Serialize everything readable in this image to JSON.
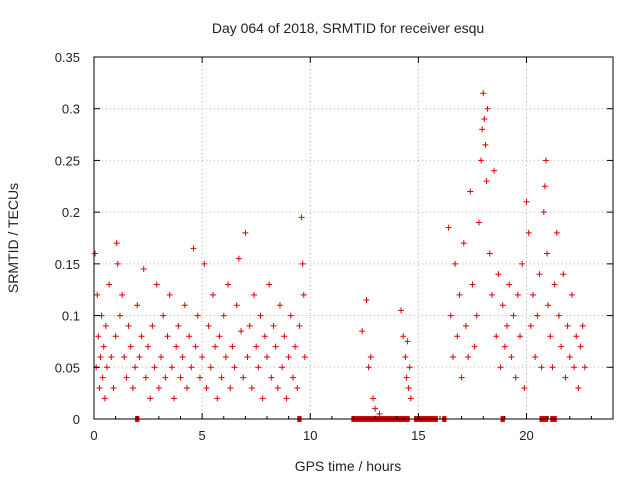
{
  "chart_data": {
    "type": "scatter",
    "title": "Day 064 of 2018, SRMTID for receiver esqu",
    "xlabel": "GPS time / hours",
    "ylabel": "SRMTID / TECUs",
    "xlim": [
      0,
      24
    ],
    "ylim": [
      0,
      0.35
    ],
    "xticks": [
      0,
      5,
      10,
      15,
      20
    ],
    "yticks": [
      0,
      0.05,
      0.1,
      0.15,
      0.2,
      0.25,
      0.3,
      0.35
    ],
    "xtick_labels": [
      "0",
      "5",
      "10",
      "15",
      "20"
    ],
    "ytick_labels": [
      "0",
      "0.05",
      "0.1",
      "0.15",
      "0.2",
      "0.25",
      "0.3",
      "0.35"
    ],
    "grid": true,
    "marker": "plus",
    "color": "#e00000",
    "series": [
      {
        "name": "SRMTID",
        "points": [
          [
            0.05,
            0.16
          ],
          [
            0.1,
            0.05
          ],
          [
            0.15,
            0.12
          ],
          [
            0.2,
            0.08
          ],
          [
            0.25,
            0.03
          ],
          [
            0.3,
            0.06
          ],
          [
            0.35,
            0.1
          ],
          [
            0.4,
            0.04
          ],
          [
            0.45,
            0.07
          ],
          [
            0.5,
            0.02
          ],
          [
            0.55,
            0.09
          ],
          [
            0.6,
            0.05
          ],
          [
            0.7,
            0.13
          ],
          [
            0.8,
            0.06
          ],
          [
            0.9,
            0.03
          ],
          [
            1.0,
            0.08
          ],
          [
            1.05,
            0.17
          ],
          [
            1.1,
            0.15
          ],
          [
            1.2,
            0.1
          ],
          [
            1.3,
            0.12
          ],
          [
            1.4,
            0.06
          ],
          [
            1.5,
            0.04
          ],
          [
            1.6,
            0.09
          ],
          [
            1.7,
            0.07
          ],
          [
            1.8,
            0.03
          ],
          [
            1.9,
            0.05
          ],
          [
            2.0,
            0.11
          ],
          [
            2.1,
            0.06
          ],
          [
            2.2,
            0.08
          ],
          [
            2.3,
            0.145
          ],
          [
            2.4,
            0.04
          ],
          [
            2.5,
            0.07
          ],
          [
            2.6,
            0.02
          ],
          [
            2.7,
            0.09
          ],
          [
            2.8,
            0.05
          ],
          [
            2.9,
            0.13
          ],
          [
            3.0,
            0.03
          ],
          [
            3.1,
            0.06
          ],
          [
            3.2,
            0.1
          ],
          [
            3.3,
            0.04
          ],
          [
            3.4,
            0.08
          ],
          [
            3.5,
            0.12
          ],
          [
            3.6,
            0.05
          ],
          [
            3.7,
            0.02
          ],
          [
            3.8,
            0.07
          ],
          [
            3.9,
            0.09
          ],
          [
            4.0,
            0.04
          ],
          [
            4.1,
            0.06
          ],
          [
            4.2,
            0.11
          ],
          [
            4.3,
            0.03
          ],
          [
            4.4,
            0.08
          ],
          [
            4.5,
            0.05
          ],
          [
            4.6,
            0.165
          ],
          [
            4.7,
            0.07
          ],
          [
            4.8,
            0.1
          ],
          [
            4.9,
            0.04
          ],
          [
            5.0,
            0.06
          ],
          [
            5.1,
            0.15
          ],
          [
            5.2,
            0.03
          ],
          [
            5.3,
            0.09
          ],
          [
            5.4,
            0.05
          ],
          [
            5.5,
            0.12
          ],
          [
            5.6,
            0.07
          ],
          [
            5.7,
            0.02
          ],
          [
            5.8,
            0.08
          ],
          [
            5.9,
            0.04
          ],
          [
            6.0,
            0.1
          ],
          [
            6.1,
            0.06
          ],
          [
            6.2,
            0.13
          ],
          [
            6.3,
            0.03
          ],
          [
            6.4,
            0.07
          ],
          [
            6.5,
            0.05
          ],
          [
            6.6,
            0.11
          ],
          [
            6.7,
            0.155
          ],
          [
            6.8,
            0.085
          ],
          [
            6.9,
            0.04
          ],
          [
            7.0,
            0.18
          ],
          [
            7.1,
            0.06
          ],
          [
            7.2,
            0.09
          ],
          [
            7.3,
            0.03
          ],
          [
            7.4,
            0.12
          ],
          [
            7.5,
            0.07
          ],
          [
            7.6,
            0.05
          ],
          [
            7.7,
            0.1
          ],
          [
            7.8,
            0.02
          ],
          [
            7.9,
            0.08
          ],
          [
            8.0,
            0.06
          ],
          [
            8.1,
            0.13
          ],
          [
            8.2,
            0.04
          ],
          [
            8.3,
            0.09
          ],
          [
            8.4,
            0.07
          ],
          [
            8.5,
            0.03
          ],
          [
            8.6,
            0.11
          ],
          [
            8.7,
            0.05
          ],
          [
            8.8,
            0.08
          ],
          [
            8.9,
            0.02
          ],
          [
            9.0,
            0.06
          ],
          [
            9.1,
            0.1
          ],
          [
            9.2,
            0.04
          ],
          [
            9.3,
            0.07
          ],
          [
            9.4,
            0.03
          ],
          [
            9.5,
            0.09
          ],
          [
            9.6,
            0.195
          ],
          [
            9.65,
            0.15
          ],
          [
            9.7,
            0.12
          ],
          [
            9.75,
            0.06
          ],
          [
            12.4,
            0.085
          ],
          [
            12.6,
            0.115
          ],
          [
            12.7,
            0.05
          ],
          [
            12.8,
            0.06
          ],
          [
            12.9,
            0.02
          ],
          [
            13.0,
            0.01
          ],
          [
            13.2,
            0.005
          ],
          [
            14.2,
            0.105
          ],
          [
            14.3,
            0.08
          ],
          [
            14.4,
            0.06
          ],
          [
            14.45,
            0.04
          ],
          [
            14.5,
            0.075
          ],
          [
            14.55,
            0.03
          ],
          [
            14.6,
            0.05
          ],
          [
            14.65,
            0.02
          ],
          [
            16.4,
            0.185
          ],
          [
            16.5,
            0.1
          ],
          [
            16.6,
            0.06
          ],
          [
            16.7,
            0.15
          ],
          [
            16.8,
            0.08
          ],
          [
            16.9,
            0.12
          ],
          [
            17.0,
            0.04
          ],
          [
            17.1,
            0.17
          ],
          [
            17.2,
            0.09
          ],
          [
            17.3,
            0.06
          ],
          [
            17.4,
            0.22
          ],
          [
            17.5,
            0.13
          ],
          [
            17.6,
            0.07
          ],
          [
            17.7,
            0.1
          ],
          [
            17.8,
            0.19
          ],
          [
            17.9,
            0.25
          ],
          [
            17.95,
            0.28
          ],
          [
            18.0,
            0.315
          ],
          [
            18.05,
            0.29
          ],
          [
            18.1,
            0.265
          ],
          [
            18.15,
            0.23
          ],
          [
            18.2,
            0.3
          ],
          [
            18.3,
            0.16
          ],
          [
            18.4,
            0.12
          ],
          [
            18.5,
            0.24
          ],
          [
            18.6,
            0.08
          ],
          [
            18.7,
            0.14
          ],
          [
            18.8,
            0.05
          ],
          [
            18.9,
            0.11
          ],
          [
            19.0,
            0.07
          ],
          [
            19.1,
            0.09
          ],
          [
            19.2,
            0.13
          ],
          [
            19.3,
            0.06
          ],
          [
            19.4,
            0.1
          ],
          [
            19.5,
            0.04
          ],
          [
            19.6,
            0.12
          ],
          [
            19.7,
            0.08
          ],
          [
            19.8,
            0.15
          ],
          [
            19.9,
            0.03
          ],
          [
            20.0,
            0.21
          ],
          [
            20.1,
            0.18
          ],
          [
            20.2,
            0.09
          ],
          [
            20.3,
            0.12
          ],
          [
            20.4,
            0.06
          ],
          [
            20.5,
            0.1
          ],
          [
            20.6,
            0.14
          ],
          [
            20.7,
            0.05
          ],
          [
            20.8,
            0.2
          ],
          [
            20.85,
            0.225
          ],
          [
            20.9,
            0.25
          ],
          [
            20.95,
            0.16
          ],
          [
            21.0,
            0.11
          ],
          [
            21.1,
            0.08
          ],
          [
            21.2,
            0.05
          ],
          [
            21.3,
            0.13
          ],
          [
            21.4,
            0.18
          ],
          [
            21.5,
            0.1
          ],
          [
            21.6,
            0.07
          ],
          [
            21.7,
            0.14
          ],
          [
            21.8,
            0.04
          ],
          [
            21.9,
            0.09
          ],
          [
            22.0,
            0.06
          ],
          [
            22.1,
            0.12
          ],
          [
            22.2,
            0.05
          ],
          [
            22.3,
            0.08
          ],
          [
            22.4,
            0.03
          ],
          [
            22.5,
            0.07
          ],
          [
            22.6,
            0.09
          ],
          [
            22.7,
            0.05
          ]
        ]
      }
    ],
    "zero_segments": [
      [
        1.9,
        2.1
      ],
      [
        9.4,
        9.6
      ],
      [
        11.9,
        14.6
      ],
      [
        14.8,
        15.9
      ],
      [
        16.1,
        16.3
      ],
      [
        18.8,
        19.0
      ],
      [
        20.6,
        21.0
      ],
      [
        21.1,
        21.4
      ]
    ]
  }
}
